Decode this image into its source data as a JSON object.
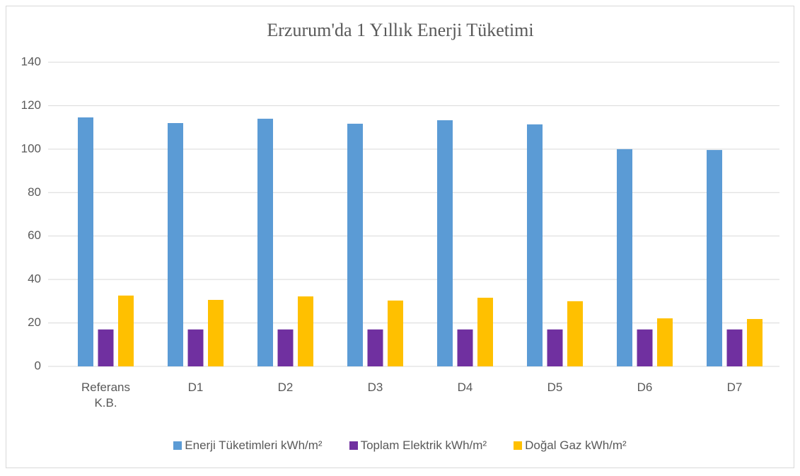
{
  "chart_data": {
    "type": "bar",
    "title": "Erzurum'da 1 Yıllık Enerji Tüketimi",
    "categories": [
      "Referans K.B.",
      "D1",
      "D2",
      "D3",
      "D4",
      "D5",
      "D6",
      "D7"
    ],
    "series": [
      {
        "name": "Enerji Tüketimleri kWh/m²",
        "color": "#5b9bd5",
        "values": [
          114.6,
          112,
          114,
          111.7,
          113.3,
          111.4,
          100,
          99.6
        ]
      },
      {
        "name": "Toplam Elektrik kWh/m²",
        "color": "#7030a0",
        "values": [
          17,
          17,
          17,
          17,
          17,
          17,
          17,
          17
        ]
      },
      {
        "name": "Doğal Gaz kWh/m²",
        "color": "#ffc000",
        "values": [
          32.6,
          30.6,
          32.2,
          30.3,
          31.6,
          30,
          22.1,
          21.8
        ]
      }
    ],
    "ylim": [
      0,
      140
    ],
    "yticks": [
      0,
      20,
      40,
      60,
      80,
      100,
      120,
      140
    ],
    "grid": true,
    "legend": "bottom"
  }
}
